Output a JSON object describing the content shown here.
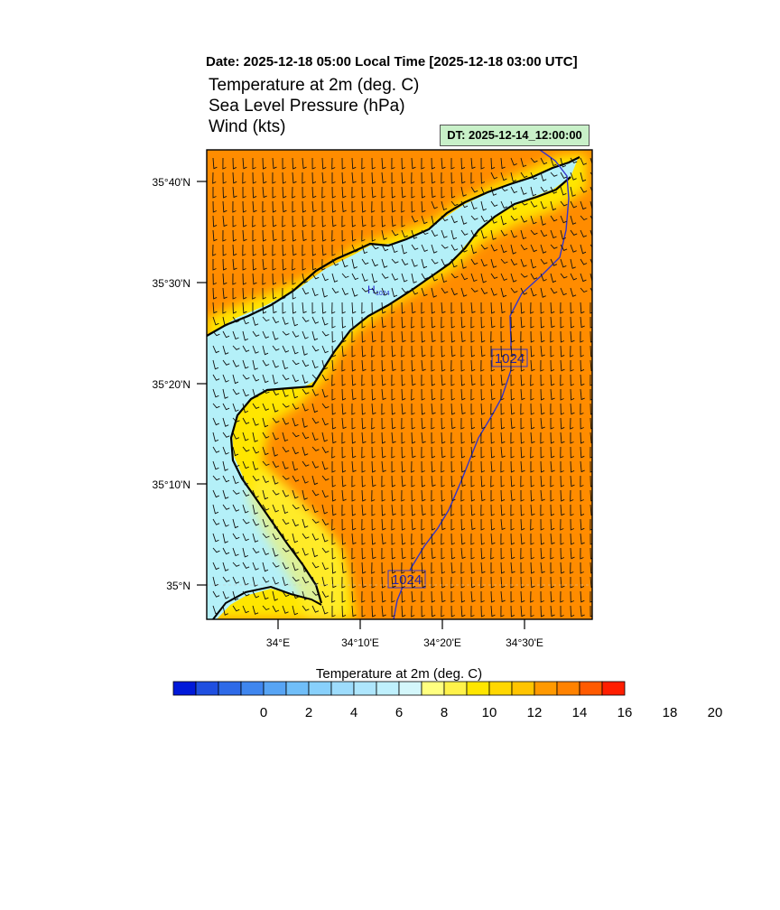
{
  "header": {
    "date_line": "Date: 2025-12-18  05:00 Local Time [2025-12-18  03:00 UTC]",
    "titles": [
      "Temperature at 2m   (deg. C)",
      "Sea Level Pressure   (hPa)",
      "Wind   (kts)"
    ],
    "dt_label": "DT: 2025-12-14_12:00:00"
  },
  "map": {
    "lat_labels": [
      "35°40'N",
      "35°30'N",
      "35°20'N",
      "35°10'N",
      "35°N"
    ],
    "lon_labels": [
      "34°E",
      "34°10'E",
      "34°20'E",
      "34°30'E"
    ],
    "colors": {
      "land": "#ff8c00",
      "sea": "#b4f0f8",
      "coast_warm": "#ffe600",
      "coast_mid": "#fff04a",
      "isobar": "#3333cc",
      "coastline": "#000000"
    },
    "isobar_labels": [
      "1024",
      "1024"
    ],
    "high_marker": {
      "symbol": "H",
      "value": "1024"
    }
  },
  "colorbar": {
    "title": "Temperature at 2m  (deg. C)",
    "tick_labels": [
      "0",
      "2",
      "4",
      "6",
      "8",
      "10",
      "12",
      "14",
      "16",
      "18",
      "20"
    ],
    "colors": [
      "#0019d9",
      "#1f4fe0",
      "#2e6ae8",
      "#3f86ef",
      "#57a4f4",
      "#70bef8",
      "#88d0fb",
      "#9ddcfc",
      "#aee6fd",
      "#bff0fd",
      "#d4f7fb",
      "#ffff80",
      "#fff24a",
      "#ffe600",
      "#ffd700",
      "#ffc400",
      "#ff9900",
      "#ff8200",
      "#ff5a00",
      "#ff1e00"
    ]
  }
}
